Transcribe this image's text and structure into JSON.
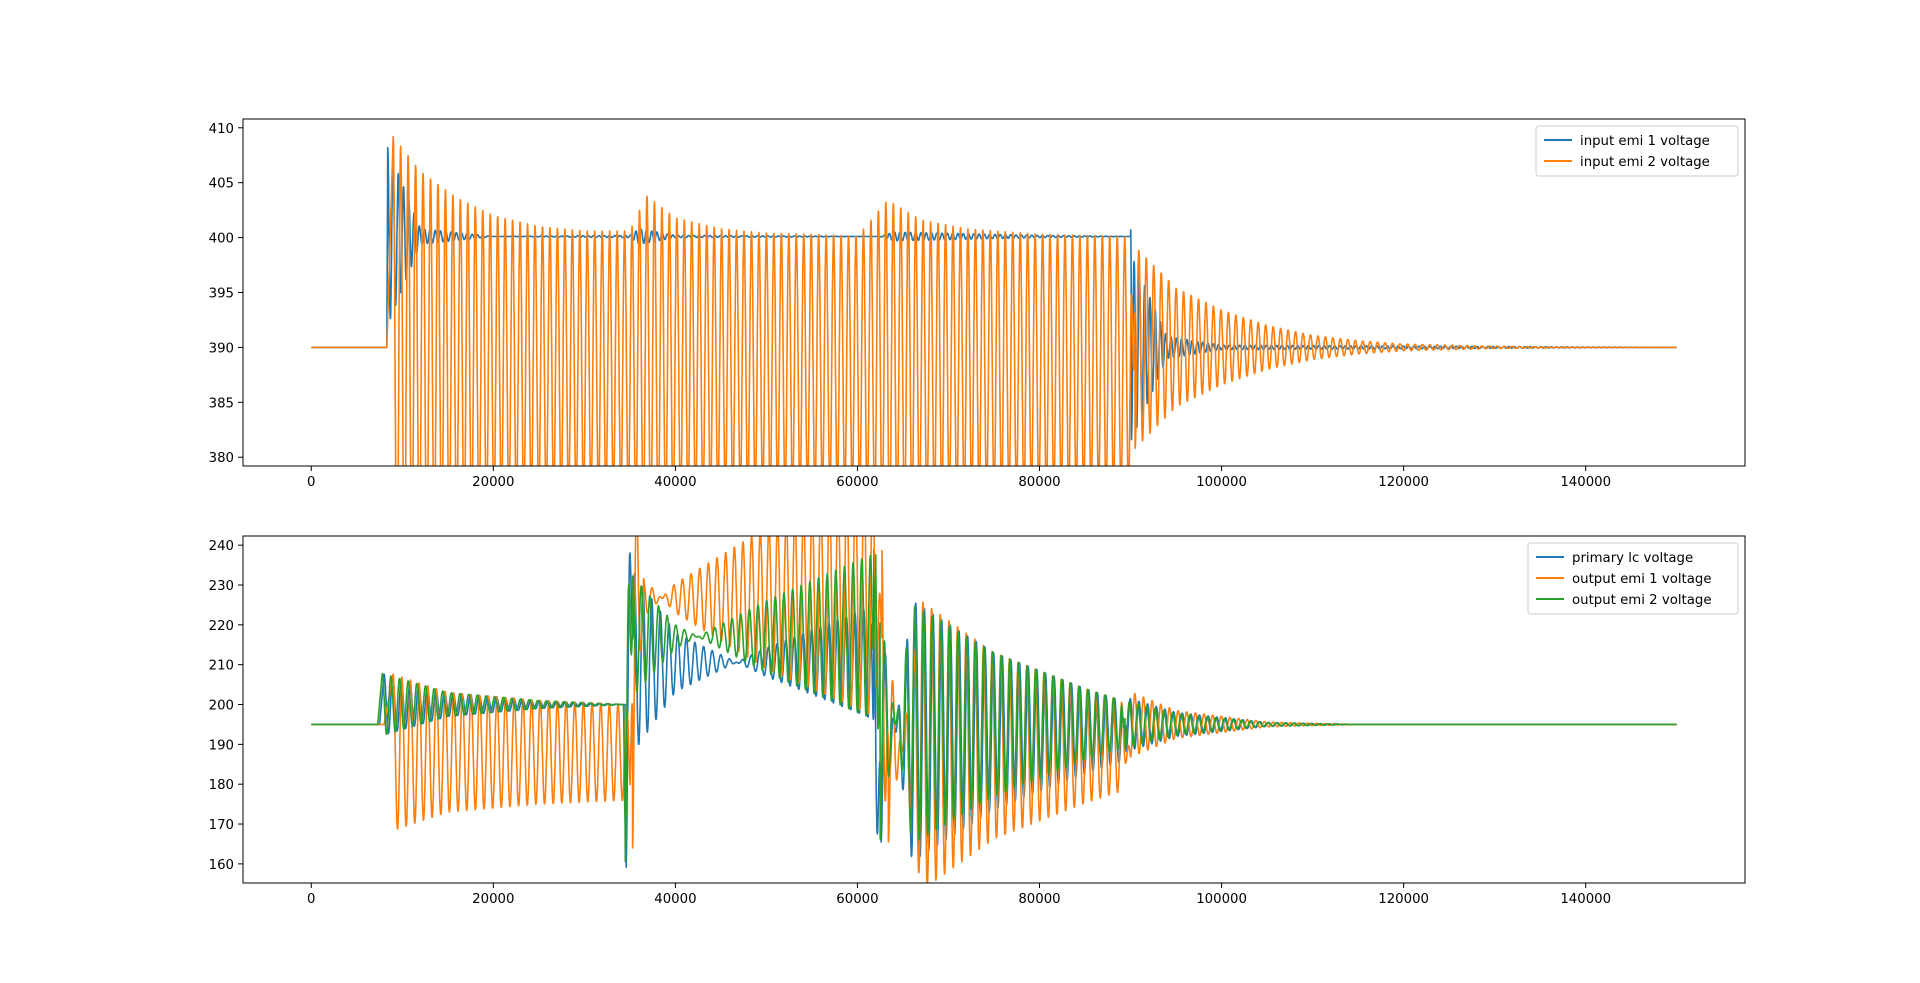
{
  "chart_data": [
    {
      "type": "line",
      "title": "",
      "xlabel": "",
      "ylabel": "",
      "xlim": [
        -7500,
        157500
      ],
      "ylim": [
        379.2,
        410.8
      ],
      "xticks": [
        0,
        20000,
        40000,
        60000,
        80000,
        100000,
        120000,
        140000
      ],
      "xtick_labels": [
        "0",
        "20000",
        "40000",
        "60000",
        "80000",
        "100000",
        "120000",
        "140000"
      ],
      "yticks": [
        380,
        385,
        390,
        395,
        400,
        405,
        410
      ],
      "ytick_labels": [
        "380",
        "385",
        "390",
        "395",
        "400",
        "405",
        "410"
      ],
      "grid": false,
      "legend_position": "top-right",
      "series": [
        {
          "name": "input emi 1 voltage",
          "color": "#1f77b4",
          "period": 580,
          "points": [
            [
              0,
              390
            ],
            [
              8300,
              390
            ],
            [
              8400,
              408.2
            ],
            [
              12000,
              400.8
            ],
            [
              20000,
              400.1
            ],
            [
              35000,
              400.2
            ],
            [
              36000,
              400.8
            ],
            [
              40000,
              400.2
            ],
            [
              62500,
              400.1
            ],
            [
              64000,
              400.5
            ],
            [
              80000,
              400.2
            ],
            [
              90000,
              400.1
            ],
            [
              90100,
              381.6
            ],
            [
              94000,
              389
            ],
            [
              100000,
              389.8
            ],
            [
              150000,
              390
            ]
          ]
        },
        {
          "name": "input emi 2 voltage",
          "color": "#ff7f0e",
          "period": 820,
          "points": [
            [
              0,
              390
            ],
            [
              8300,
              390
            ],
            [
              9000,
              409.2
            ],
            [
              12000,
              406
            ],
            [
              16000,
              403.6
            ],
            [
              20000,
              402
            ],
            [
              25000,
              401
            ],
            [
              30000,
              400.6
            ],
            [
              35000,
              400.6
            ],
            [
              36800,
              403.8
            ],
            [
              40000,
              401.8
            ],
            [
              45000,
              400.8
            ],
            [
              50000,
              400.4
            ],
            [
              55000,
              400.3
            ],
            [
              60000,
              400.1
            ],
            [
              63300,
              403.4
            ],
            [
              67000,
              401.6
            ],
            [
              72000,
              400.8
            ],
            [
              80000,
              400.3
            ],
            [
              89000,
              400.1
            ],
            [
              90000,
              400
            ],
            [
              90500,
              380.8
            ],
            [
              95000,
              384.6
            ],
            [
              100000,
              386.6
            ],
            [
              105000,
              388
            ],
            [
              110000,
              388.9
            ],
            [
              115000,
              389.4
            ],
            [
              120000,
              389.7
            ],
            [
              130000,
              389.9
            ],
            [
              140000,
              390
            ],
            [
              150000,
              390
            ]
          ]
        }
      ]
    },
    {
      "type": "line",
      "title": "",
      "xlabel": "",
      "ylabel": "",
      "xlim": [
        -7500,
        157500
      ],
      "ylim": [
        155.2,
        242.3
      ],
      "xticks": [
        0,
        20000,
        40000,
        60000,
        80000,
        100000,
        120000,
        140000
      ],
      "xtick_labels": [
        "0",
        "20000",
        "40000",
        "60000",
        "80000",
        "100000",
        "120000",
        "140000"
      ],
      "yticks": [
        160,
        170,
        180,
        190,
        200,
        210,
        220,
        230,
        240
      ],
      "ytick_labels": [
        "160",
        "170",
        "180",
        "190",
        "200",
        "210",
        "220",
        "230",
        "240"
      ],
      "grid": false,
      "legend_position": "top-right",
      "series": [
        {
          "name": "primary lc voltage",
          "color": "#1f77b4",
          "period": 950,
          "points": [
            [
              0,
              195
            ],
            [
              7500,
              195
            ],
            [
              8000,
              207.6
            ],
            [
              15000,
              203
            ],
            [
              25000,
              201
            ],
            [
              34500,
              200
            ],
            [
              34600,
              159.2
            ],
            [
              35500,
              232.8
            ],
            [
              40000,
              218
            ],
            [
              50000,
              207
            ],
            [
              60000,
              198
            ],
            [
              61500,
              196.5
            ],
            [
              61800,
              238.8
            ],
            [
              62600,
              165.5
            ],
            [
              66000,
              226
            ],
            [
              75000,
              213
            ],
            [
              85000,
              204
            ],
            [
              89000,
              201
            ],
            [
              89500,
              188.2
            ],
            [
              95000,
              192
            ],
            [
              105000,
              194.5
            ],
            [
              115000,
              195
            ],
            [
              150000,
              195
            ]
          ]
        },
        {
          "name": "output emi 1 voltage",
          "color": "#ff7f0e",
          "period": 950,
          "points": [
            [
              0,
              195
            ],
            [
              8000,
              195
            ],
            [
              9000,
              207.6
            ],
            [
              15000,
              203
            ],
            [
              25000,
              201
            ],
            [
              35000,
              200
            ],
            [
              35300,
              164
            ],
            [
              36500,
              231.6
            ],
            [
              40000,
              223
            ],
            [
              50000,
              209
            ],
            [
              60000,
              199
            ],
            [
              62000,
              197
            ],
            [
              62700,
              238.6
            ],
            [
              63400,
              165.5
            ],
            [
              67000,
              226
            ],
            [
              75000,
              213
            ],
            [
              85000,
              204
            ],
            [
              89000,
              201
            ],
            [
              90000,
              186.8
            ],
            [
              95000,
              191.5
            ],
            [
              105000,
              194.4
            ],
            [
              115000,
              195
            ],
            [
              150000,
              195
            ]
          ]
        },
        {
          "name": "output emi 2 voltage",
          "color": "#2ca02c",
          "period": 950,
          "points": [
            [
              0,
              195
            ],
            [
              7300,
              195
            ],
            [
              7800,
              207.8
            ],
            [
              15000,
              203
            ],
            [
              25000,
              201
            ],
            [
              34300,
              200
            ],
            [
              34500,
              160.6
            ],
            [
              35300,
              232.2
            ],
            [
              40000,
              220
            ],
            [
              50000,
              208
            ],
            [
              60000,
              198
            ],
            [
              61600,
              196.5
            ],
            [
              62000,
              237.6
            ],
            [
              62500,
              166.2
            ],
            [
              66000,
              225
            ],
            [
              75000,
              213
            ],
            [
              85000,
              204
            ],
            [
              89000,
              201
            ],
            [
              89400,
              189
            ],
            [
              95000,
              192.3
            ],
            [
              105000,
              194.6
            ],
            [
              115000,
              195
            ],
            [
              150000,
              195
            ]
          ]
        }
      ]
    }
  ]
}
